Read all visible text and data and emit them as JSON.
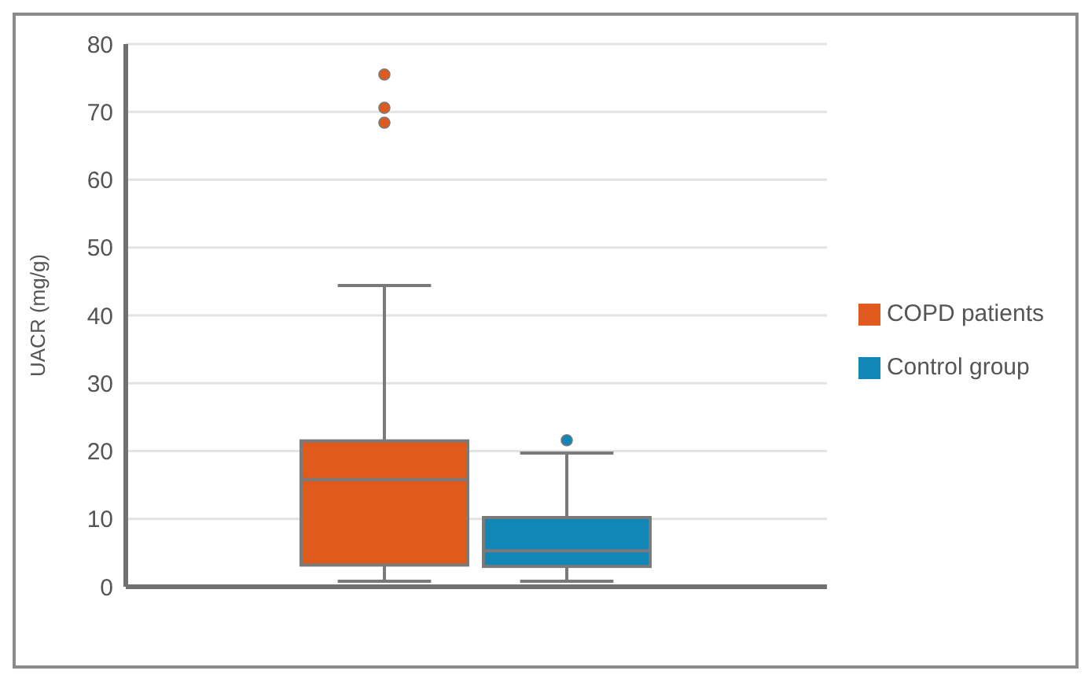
{
  "chart_data": {
    "type": "box",
    "ylabel": "UACR (mg/g)",
    "categories": [
      null
    ],
    "series": [
      {
        "name": "COPD patients",
        "color": "#e05a1e",
        "boxes": [
          {
            "low": 0.8,
            "q1": 3.2,
            "median": 15.8,
            "q3": 21.5,
            "high": 44.4,
            "outliers": [
              75.5,
              70.6,
              68.4
            ]
          }
        ]
      },
      {
        "name": "Control group",
        "color": "#1187b8",
        "boxes": [
          {
            "low": 0.8,
            "q1": 3.0,
            "median": 5.3,
            "q3": 10.2,
            "high": 19.7,
            "outliers": [
              21.6
            ]
          }
        ]
      }
    ],
    "ylim": [
      0,
      80
    ],
    "yticks": [
      0,
      10,
      20,
      30,
      40,
      50,
      60,
      70,
      80
    ],
    "grid": "y",
    "legend": "right"
  }
}
